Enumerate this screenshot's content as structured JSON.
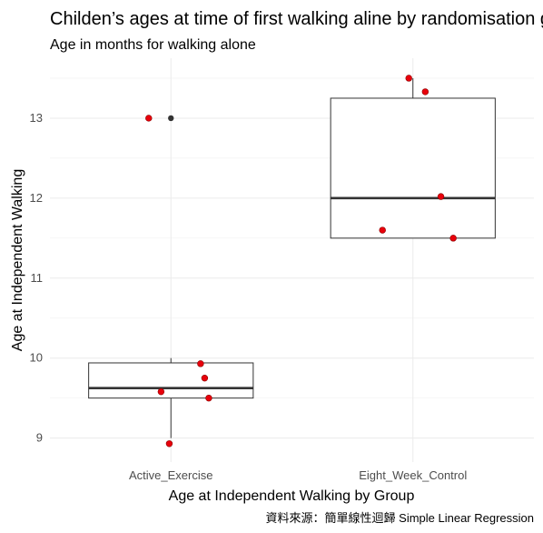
{
  "chart_data": {
    "type": "box",
    "title": "Childen’s ages at time of first walking aline by randomisation group",
    "subtitle": "Age in months for walking alone",
    "xlabel": "Age at Independent Walking by Group",
    "ylabel": "Age at Independent Walking",
    "caption": "資料來源：簡單線性迴歸 Simple Linear Regression",
    "categories": [
      "Active_Exercise",
      "Eight_Week_Control"
    ],
    "ylim": [
      8.7,
      13.75
    ],
    "y_ticks": [
      9,
      10,
      11,
      12,
      13
    ],
    "grid": true,
    "colors": {
      "box_outline": "#333333",
      "median": "#333333",
      "points": "#e8000b",
      "points_outline": "#8b0000",
      "outlier": "#333333"
    },
    "boxes": [
      {
        "group": "Active_Exercise",
        "whisker_low": 9.0,
        "q1": 9.5,
        "median": 9.625,
        "q3": 9.94,
        "whisker_high": 10.0,
        "outliers": [
          13.0
        ]
      },
      {
        "group": "Eight_Week_Control",
        "whisker_low": 11.5,
        "q1": 11.5,
        "median": 12.0,
        "q3": 13.25,
        "whisker_high": 13.5,
        "outliers": []
      }
    ],
    "points": [
      {
        "group": "Active_Exercise",
        "y": 13.0
      },
      {
        "group": "Active_Exercise",
        "y": 9.93
      },
      {
        "group": "Active_Exercise",
        "y": 9.75
      },
      {
        "group": "Active_Exercise",
        "y": 9.58
      },
      {
        "group": "Active_Exercise",
        "y": 9.5
      },
      {
        "group": "Active_Exercise",
        "y": 8.93
      },
      {
        "group": "Eight_Week_Control",
        "y": 13.5
      },
      {
        "group": "Eight_Week_Control",
        "y": 13.33
      },
      {
        "group": "Eight_Week_Control",
        "y": 12.02
      },
      {
        "group": "Eight_Week_Control",
        "y": 11.6
      },
      {
        "group": "Eight_Week_Control",
        "y": 11.5
      }
    ]
  }
}
